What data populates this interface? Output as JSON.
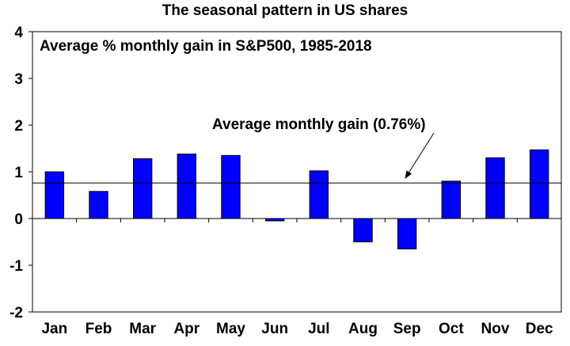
{
  "chart_data": {
    "type": "bar",
    "title": "The seasonal pattern in US shares",
    "subtitle": "Average % monthly gain in S&P500, 1985-2018",
    "xlabel": "",
    "ylabel": "",
    "categories": [
      "Jan",
      "Feb",
      "Mar",
      "Apr",
      "May",
      "Jun",
      "Jul",
      "Aug",
      "Sep",
      "Oct",
      "Nov",
      "Dec"
    ],
    "values": [
      1.0,
      0.58,
      1.28,
      1.38,
      1.35,
      -0.05,
      1.02,
      -0.5,
      -0.65,
      0.8,
      1.3,
      1.47
    ],
    "ylim": [
      -2,
      4
    ],
    "yticks": [
      "-2",
      "-1",
      "0",
      "1",
      "2",
      "3",
      "4"
    ],
    "grid": false,
    "average_line": {
      "value": 0.76,
      "label": "Average monthly gain (0.76%)"
    },
    "colors": {
      "bar": "#0000ff",
      "bar_edge": "#000000",
      "axis": "#000000"
    }
  }
}
